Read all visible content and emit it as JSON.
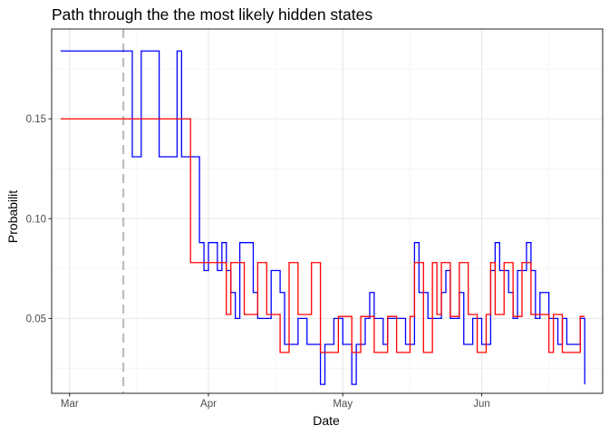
{
  "chart_data": {
    "type": "line",
    "title": "Path through the the most likely hidden states",
    "xlabel": "Date",
    "ylabel": "Probabilit",
    "x_range": [
      "2024-02-26",
      "2024-06-28"
    ],
    "ylim": [
      0.0125,
      0.195
    ],
    "x_ticks": [
      {
        "date": "2024-03-01",
        "label": "Mar"
      },
      {
        "date": "2024-04-01",
        "label": "Apr"
      },
      {
        "date": "2024-05-01",
        "label": "May"
      },
      {
        "date": "2024-06-01",
        "label": "Jun"
      }
    ],
    "y_ticks": [
      {
        "value": 0.05,
        "label": "0.05"
      },
      {
        "value": 0.1,
        "label": "0.10"
      },
      {
        "value": 0.15,
        "label": "0.15"
      }
    ],
    "minor_x_ticks": [
      "2024-03-16",
      "2024-04-16",
      "2024-05-16",
      "2024-06-16"
    ],
    "minor_y_ticks": [
      0.025,
      0.075,
      0.125,
      0.175
    ],
    "grid": true,
    "reference_line": {
      "date": "2024-03-13",
      "color": "#bebebe",
      "style": "dashed"
    },
    "step_series": [
      {
        "color": "#0000ff",
        "x": [
          "2024-02-28",
          "2024-03-15",
          "2024-03-17",
          "2024-03-21",
          "2024-03-25",
          "2024-03-26",
          "2024-03-27",
          "2024-03-30",
          "2024-03-31",
          "2024-04-01",
          "2024-04-03",
          "2024-04-04",
          "2024-04-05",
          "2024-04-06",
          "2024-04-07",
          "2024-04-08",
          "2024-04-11",
          "2024-04-12",
          "2024-04-13",
          "2024-04-15",
          "2024-04-17",
          "2024-04-18",
          "2024-04-21",
          "2024-04-23",
          "2024-04-26",
          "2024-04-27",
          "2024-04-28",
          "2024-04-29",
          "2024-05-01",
          "2024-05-03",
          "2024-05-04",
          "2024-05-06",
          "2024-05-07",
          "2024-05-08",
          "2024-05-10",
          "2024-05-11",
          "2024-05-13",
          "2024-05-15",
          "2024-05-17",
          "2024-05-18",
          "2024-05-19",
          "2024-05-20",
          "2024-05-23",
          "2024-05-24",
          "2024-05-25",
          "2024-05-27",
          "2024-05-28",
          "2024-05-30",
          "2024-06-01",
          "2024-06-03",
          "2024-06-04",
          "2024-06-05",
          "2024-06-07",
          "2024-06-08",
          "2024-06-09",
          "2024-06-11",
          "2024-06-12",
          "2024-06-13",
          "2024-06-14",
          "2024-06-16",
          "2024-06-17",
          "2024-06-18",
          "2024-06-19",
          "2024-06-20",
          "2024-06-23",
          "2024-06-24",
          "2024-06-24"
        ],
        "y": [
          0.184,
          0.131,
          0.184,
          0.131,
          0.184,
          0.131,
          0.131,
          0.088,
          0.074,
          0.088,
          0.074,
          0.088,
          0.074,
          0.063,
          0.05,
          0.088,
          0.063,
          0.05,
          0.05,
          0.074,
          0.063,
          0.037,
          0.05,
          0.037,
          0.017,
          0.037,
          0.037,
          0.05,
          0.037,
          0.017,
          0.037,
          0.05,
          0.063,
          0.05,
          0.037,
          0.05,
          0.05,
          0.037,
          0.088,
          0.063,
          0.063,
          0.05,
          0.063,
          0.074,
          0.05,
          0.063,
          0.037,
          0.05,
          0.037,
          0.074,
          0.088,
          0.074,
          0.063,
          0.05,
          0.074,
          0.088,
          0.074,
          0.05,
          0.063,
          0.05,
          0.05,
          0.037,
          0.05,
          0.037,
          0.05,
          0.017,
          0.017
        ]
      },
      {
        "color": "#ff0000",
        "x": [
          "2024-02-28",
          "2024-03-27",
          "2024-03-28",
          "2024-04-05",
          "2024-04-06",
          "2024-04-09",
          "2024-04-12",
          "2024-04-14",
          "2024-04-17",
          "2024-04-19",
          "2024-04-21",
          "2024-04-24",
          "2024-04-26",
          "2024-04-27",
          "2024-04-30",
          "2024-05-03",
          "2024-05-05",
          "2024-05-07",
          "2024-05-08",
          "2024-05-11",
          "2024-05-13",
          "2024-05-16",
          "2024-05-17",
          "2024-05-19",
          "2024-05-21",
          "2024-05-22",
          "2024-05-23",
          "2024-05-25",
          "2024-05-27",
          "2024-05-29",
          "2024-05-31",
          "2024-06-02",
          "2024-06-03",
          "2024-06-04",
          "2024-06-06",
          "2024-06-08",
          "2024-06-10",
          "2024-06-12",
          "2024-06-15",
          "2024-06-16",
          "2024-06-17",
          "2024-06-19",
          "2024-06-23",
          "2024-06-24",
          "2024-06-24"
        ],
        "y": [
          0.15,
          0.15,
          0.078,
          0.052,
          0.078,
          0.052,
          0.078,
          0.052,
          0.033,
          0.078,
          0.052,
          0.078,
          0.033,
          0.033,
          0.051,
          0.033,
          0.051,
          0.051,
          0.033,
          0.051,
          0.033,
          0.051,
          0.078,
          0.033,
          0.078,
          0.052,
          0.078,
          0.051,
          0.078,
          0.052,
          0.033,
          0.052,
          0.078,
          0.052,
          0.078,
          0.051,
          0.078,
          0.052,
          0.052,
          0.033,
          0.052,
          0.033,
          0.051,
          0.051,
          0.051
        ]
      }
    ]
  }
}
